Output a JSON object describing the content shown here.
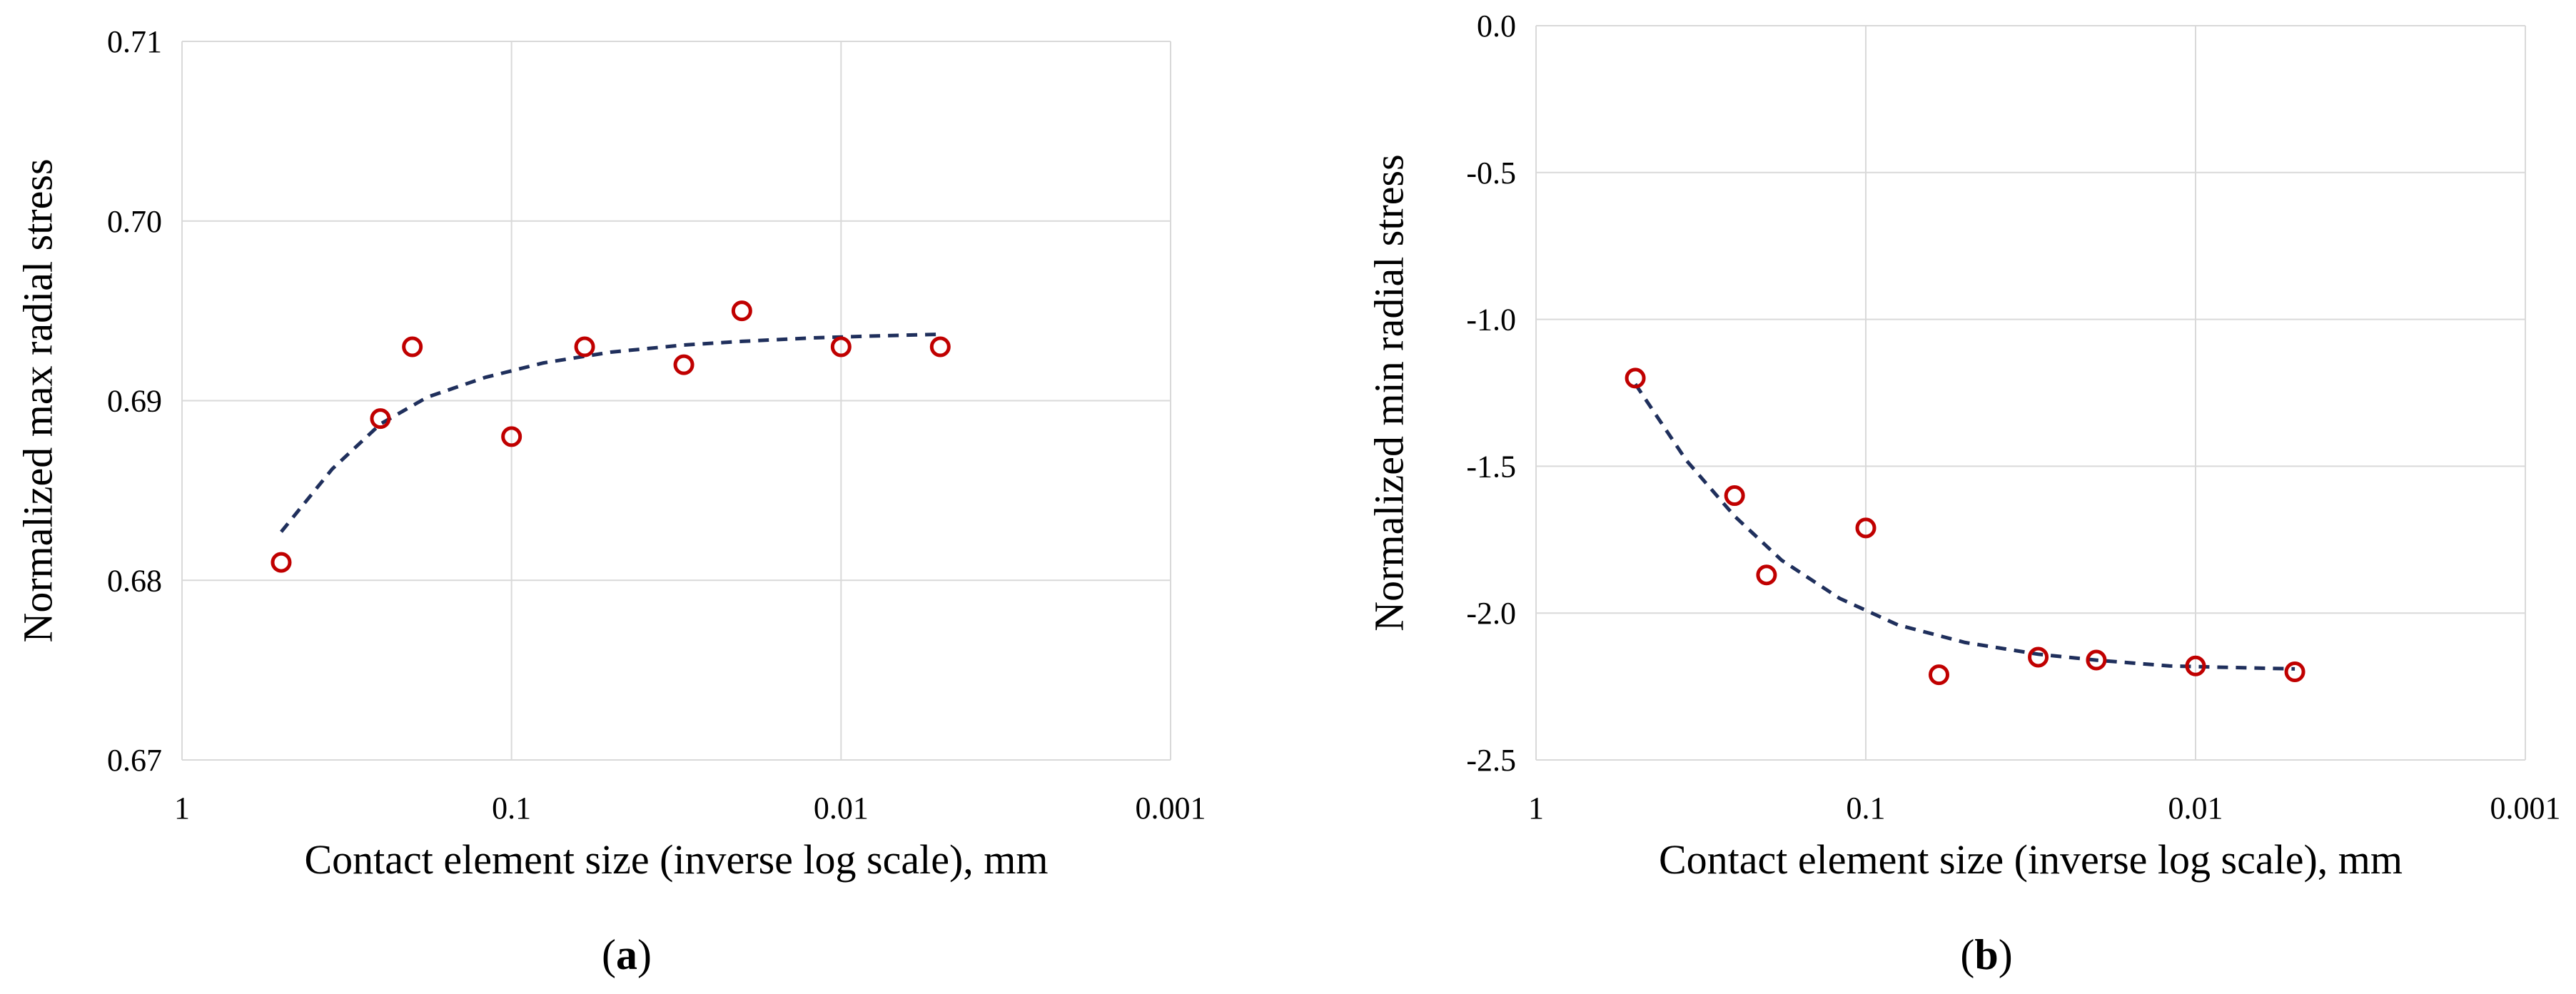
{
  "chart_data": [
    {
      "type": "scatter",
      "panel": "a",
      "panel_caption_open": "(",
      "panel_caption_letter": "a",
      "panel_caption_close": ")",
      "xlabel": "Contact element size (inverse log scale), mm",
      "ylabel": "Normalized max radial stress",
      "x_scale": "log-inverse",
      "xlim": [
        1,
        0.001
      ],
      "ylim": [
        0.67,
        0.71
      ],
      "x_ticks": [
        1,
        0.1,
        0.01,
        0.001
      ],
      "x_tick_labels": [
        "1",
        "0.1",
        "0.01",
        "0.001"
      ],
      "y_ticks": [
        0.67,
        0.68,
        0.69,
        0.7,
        0.71
      ],
      "y_tick_labels": [
        "0.67",
        "0.68",
        "0.69",
        "0.70",
        "0.71"
      ],
      "grid": true,
      "series": [
        {
          "name": "data",
          "style": "open-circle",
          "x": [
            0.5,
            0.25,
            0.2,
            0.1,
            0.06,
            0.03,
            0.02,
            0.01,
            0.005
          ],
          "y": [
            0.681,
            0.689,
            0.693,
            0.688,
            0.693,
            0.692,
            0.695,
            0.693,
            0.693
          ]
        },
        {
          "name": "trend",
          "style": "dashed-line",
          "x": [
            0.5,
            0.35,
            0.25,
            0.18,
            0.12,
            0.08,
            0.05,
            0.03,
            0.02,
            0.012,
            0.008,
            0.005
          ],
          "y": [
            0.6827,
            0.6862,
            0.6887,
            0.6902,
            0.6913,
            0.6921,
            0.6927,
            0.6931,
            0.6933,
            0.6935,
            0.6936,
            0.6937
          ]
        }
      ]
    },
    {
      "type": "scatter",
      "panel": "b",
      "panel_caption_open": "(",
      "panel_caption_letter": "b",
      "panel_caption_close": ")",
      "xlabel": "Contact element size (inverse log scale), mm",
      "ylabel": "Normalized min radial stress",
      "x_scale": "log-inverse",
      "xlim": [
        1,
        0.001
      ],
      "ylim": [
        -2.5,
        0.0
      ],
      "x_ticks": [
        1,
        0.1,
        0.01,
        0.001
      ],
      "x_tick_labels": [
        "1",
        "0.1",
        "0.01",
        "0.001"
      ],
      "y_ticks": [
        0.0,
        -0.5,
        -1.0,
        -1.5,
        -2.0,
        -2.5
      ],
      "y_tick_labels": [
        "0.0",
        "-0.5",
        "-1.0",
        "-1.5",
        "-2.0",
        "-2.5"
      ],
      "grid": true,
      "series": [
        {
          "name": "data",
          "style": "open-circle",
          "x": [
            0.5,
            0.25,
            0.2,
            0.1,
            0.06,
            0.03,
            0.02,
            0.01,
            0.005
          ],
          "y": [
            -1.2,
            -1.6,
            -1.87,
            -1.71,
            -2.21,
            -2.15,
            -2.16,
            -2.18,
            -2.2
          ]
        },
        {
          "name": "trend",
          "style": "dashed-line",
          "x": [
            0.5,
            0.35,
            0.25,
            0.18,
            0.12,
            0.08,
            0.05,
            0.03,
            0.02,
            0.012,
            0.008,
            0.005
          ],
          "y": [
            -1.22,
            -1.48,
            -1.67,
            -1.82,
            -1.95,
            -2.04,
            -2.1,
            -2.14,
            -2.16,
            -2.18,
            -2.185,
            -2.19
          ]
        }
      ]
    }
  ],
  "colors": {
    "marker": "#c00000",
    "trend": "#1f2f5c",
    "grid": "#d9d9d9",
    "text": "#000000"
  }
}
